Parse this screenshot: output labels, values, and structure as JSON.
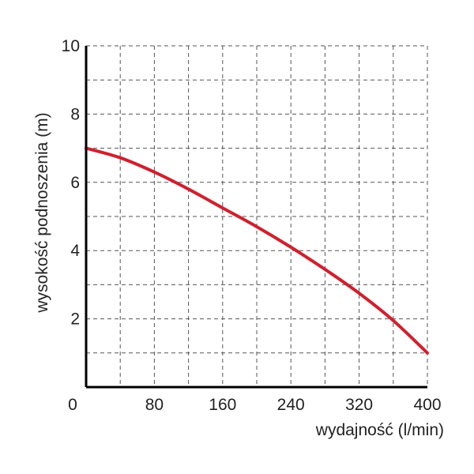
{
  "chart_data": {
    "type": "line",
    "xlabel": "wydajność (l/min)",
    "ylabel": "wysokość podnoszenia (m)",
    "xlim": [
      0,
      400
    ],
    "ylim": [
      0,
      10
    ],
    "x_ticks": [
      0,
      80,
      160,
      240,
      320,
      400
    ],
    "y_ticks": [
      2,
      4,
      6,
      8,
      10
    ],
    "x_grid_step": 40,
    "y_grid_step": 1,
    "grid": true,
    "series": [
      {
        "color": "#d0202e",
        "x": [
          0,
          40,
          80,
          120,
          160,
          200,
          240,
          280,
          320,
          360,
          400
        ],
        "y": [
          7.0,
          6.72,
          6.3,
          5.8,
          5.25,
          4.7,
          4.1,
          3.45,
          2.75,
          1.95,
          1.0
        ]
      }
    ]
  }
}
